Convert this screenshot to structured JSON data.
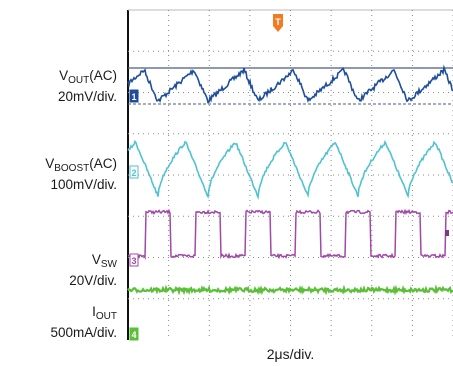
{
  "chart_data": {
    "type": "line",
    "title": "",
    "xlabel": "2μs/div.",
    "ylabel": "",
    "grid": true,
    "divisions": {
      "x": 8,
      "y": 8
    },
    "colors": {
      "vout": "#1f4e9c",
      "vboost": "#4fc3d0",
      "vsw": "#a04aa8",
      "iout": "#5cbf3a",
      "trigger": "#f07b22",
      "grid": "#888888"
    },
    "series": [
      {
        "id": "vout",
        "marker": "1",
        "label_main": "V",
        "label_sub": "OUT",
        "label_tail": "(AC)",
        "scale": "20mV/div.",
        "waveform": "triangle",
        "periods": 6.5
      },
      {
        "id": "vboost",
        "marker": "2",
        "label_main": "V",
        "label_sub": "BOOST",
        "label_tail": "(AC)",
        "scale": "100mV/div.",
        "waveform": "sawtooth",
        "periods": 6.5
      },
      {
        "id": "vsw",
        "marker": "3",
        "label_main": "V",
        "label_sub": "SW",
        "label_tail": "",
        "scale": "20V/div.",
        "waveform": "square",
        "periods": 6.5
      },
      {
        "id": "iout",
        "marker": "4",
        "label_main": "I",
        "label_sub": "OUT",
        "label_tail": "",
        "scale": "500mA/div.",
        "waveform": "dc"
      }
    ],
    "trigger_marker": "T"
  }
}
